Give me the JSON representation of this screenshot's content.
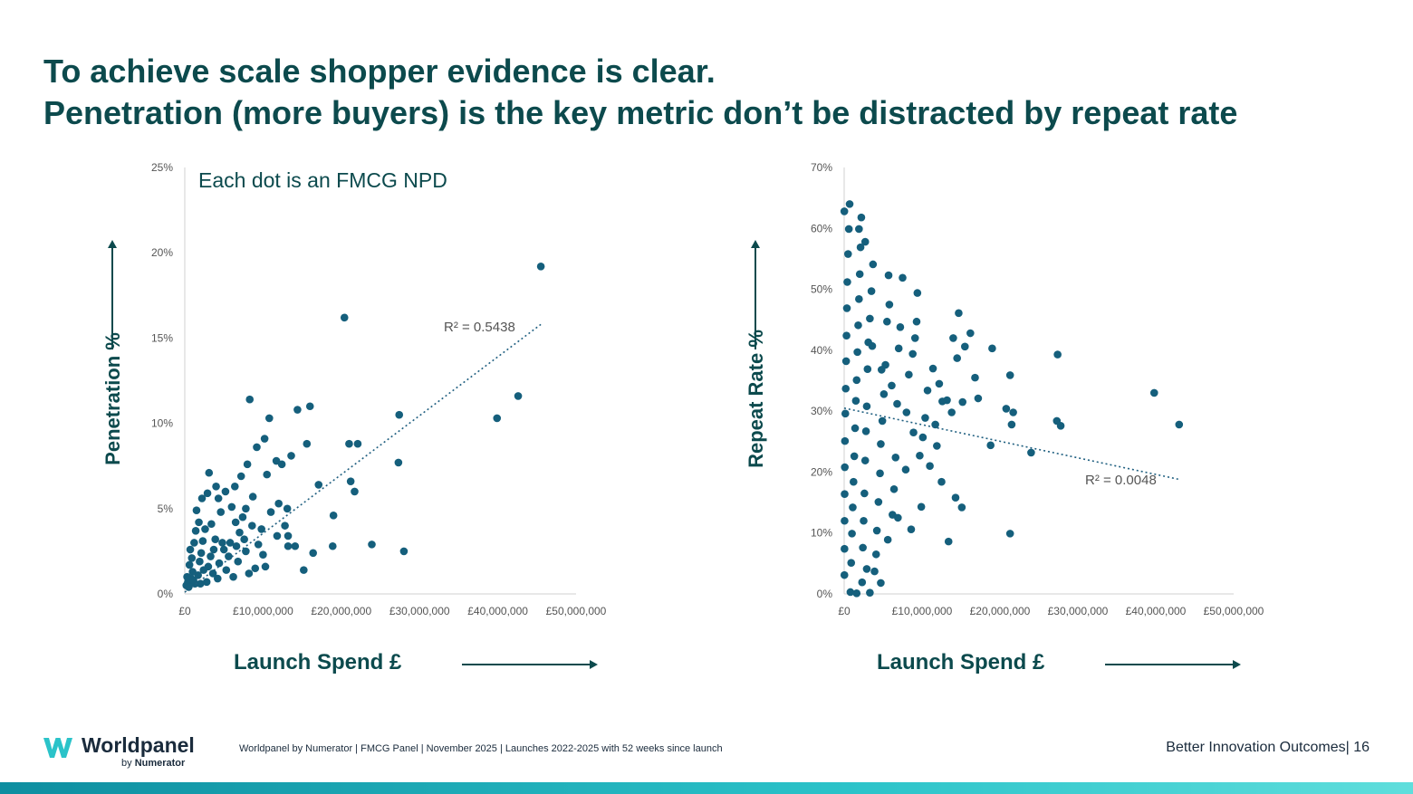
{
  "slide": {
    "title_line1": "To achieve scale shopper evidence is clear.",
    "title_line2": "Penetration (more buyers) is the key metric don’t be distracted by repeat rate",
    "annotation": "Each dot is an FMCG NPD",
    "footer": {
      "brand": "Worldpanel",
      "brand_sub_prefix": "by",
      "brand_sub": "Numerator",
      "source": "Worldpanel by Numerator | FMCG Panel | November 2025 | Launches 2022-2025 with 52 weeks since launch",
      "right": "Better Innovation Outcomes| 16"
    },
    "colors": {
      "title": "#0c4a4d",
      "dots": "#155f7c",
      "accent_bar": "#2bc3c9"
    }
  },
  "chart_data": [
    {
      "type": "scatter",
      "ylabel": "Penetration %",
      "xlabel": "Launch Spend £",
      "x_ticks": [
        "£0",
        "£10,000,000",
        "£20,000,000",
        "£30,000,000",
        "£40,000,000",
        "£50,000,000"
      ],
      "y_ticks": [
        "0%",
        "5%",
        "10%",
        "15%",
        "20%",
        "25%"
      ],
      "xlim": [
        0,
        50000000
      ],
      "ylim": [
        0,
        25
      ],
      "grid": false,
      "trendline": {
        "type": "linear",
        "x": [
          0,
          45500000
        ],
        "y": [
          0.1,
          15.8
        ],
        "r2_text": "R² = 0.5438"
      },
      "points": [
        [
          45500000,
          19.2
        ],
        [
          20400000,
          16.2
        ],
        [
          42600000,
          11.6
        ],
        [
          39900000,
          10.3
        ],
        [
          27400000,
          10.5
        ],
        [
          27300000,
          7.7
        ],
        [
          8300000,
          11.4
        ],
        [
          10800000,
          10.3
        ],
        [
          14400000,
          10.8
        ],
        [
          16000000,
          11.0
        ],
        [
          21000000,
          8.8
        ],
        [
          22100000,
          8.8
        ],
        [
          21200000,
          6.6
        ],
        [
          21700000,
          6.0
        ],
        [
          17100000,
          6.4
        ],
        [
          15600000,
          8.8
        ],
        [
          13600000,
          8.1
        ],
        [
          19000000,
          4.6
        ],
        [
          18900000,
          2.8
        ],
        [
          23900000,
          2.9
        ],
        [
          28000000,
          2.5
        ],
        [
          15200000,
          1.4
        ],
        [
          16400000,
          2.4
        ],
        [
          13200000,
          2.8
        ],
        [
          14100000,
          2.8
        ],
        [
          13200000,
          3.4
        ],
        [
          13100000,
          5.0
        ],
        [
          12800000,
          4.0
        ],
        [
          10200000,
          9.1
        ],
        [
          11700000,
          7.8
        ],
        [
          9200000,
          8.6
        ],
        [
          10500000,
          7.0
        ],
        [
          12400000,
          7.6
        ],
        [
          8000000,
          7.6
        ],
        [
          7200000,
          6.9
        ],
        [
          8700000,
          5.7
        ],
        [
          7800000,
          5.0
        ],
        [
          9800000,
          3.8
        ],
        [
          10000000,
          2.3
        ],
        [
          9000000,
          1.5
        ],
        [
          10300000,
          1.6
        ],
        [
          11800000,
          3.4
        ],
        [
          3100000,
          7.1
        ],
        [
          5200000,
          6.0
        ],
        [
          4300000,
          5.6
        ],
        [
          2200000,
          5.6
        ],
        [
          1500000,
          4.9
        ],
        [
          6500000,
          4.2
        ],
        [
          7000000,
          3.6
        ],
        [
          7800000,
          2.5
        ],
        [
          8200000,
          1.2
        ],
        [
          6200000,
          1.0
        ],
        [
          6800000,
          1.9
        ],
        [
          5600000,
          2.2
        ],
        [
          4800000,
          3.0
        ],
        [
          3700000,
          2.6
        ],
        [
          5300000,
          1.4
        ],
        [
          4200000,
          0.9
        ],
        [
          2600000,
          3.8
        ],
        [
          3000000,
          1.6
        ],
        [
          2100000,
          2.4
        ],
        [
          2800000,
          0.7
        ],
        [
          1200000,
          3.0
        ],
        [
          1700000,
          1.1
        ],
        [
          1900000,
          1.9
        ],
        [
          900000,
          2.1
        ],
        [
          1000000,
          1.3
        ],
        [
          600000,
          1.7
        ],
        [
          800000,
          0.9
        ],
        [
          400000,
          0.7
        ],
        [
          300000,
          1.0
        ],
        [
          200000,
          0.5
        ],
        [
          500000,
          0.4
        ],
        [
          1300000,
          0.6
        ],
        [
          2400000,
          1.4
        ],
        [
          3400000,
          4.1
        ],
        [
          4600000,
          4.8
        ],
        [
          6000000,
          5.1
        ],
        [
          3900000,
          3.2
        ],
        [
          5800000,
          3.0
        ],
        [
          7400000,
          4.5
        ],
        [
          8600000,
          4.0
        ],
        [
          9400000,
          2.9
        ],
        [
          11000000,
          4.8
        ],
        [
          12000000,
          5.3
        ],
        [
          6400000,
          6.3
        ],
        [
          4000000,
          6.3
        ],
        [
          2900000,
          5.9
        ],
        [
          1800000,
          4.2
        ],
        [
          2300000,
          3.1
        ],
        [
          3300000,
          2.2
        ],
        [
          4400000,
          1.8
        ],
        [
          5000000,
          2.6
        ],
        [
          6600000,
          2.8
        ],
        [
          7600000,
          3.2
        ],
        [
          1400000,
          3.7
        ],
        [
          700000,
          2.6
        ],
        [
          1100000,
          0.8
        ],
        [
          2000000,
          0.6
        ],
        [
          3600000,
          1.2
        ]
      ]
    },
    {
      "type": "scatter",
      "ylabel": "Repeat Rate %",
      "xlabel": "Launch Spend £",
      "x_ticks": [
        "£0",
        "£10,000,000",
        "£20,000,000",
        "£30,000,000",
        "£40,000,000",
        "£50,000,000"
      ],
      "y_ticks": [
        "0%",
        "10%",
        "20%",
        "30%",
        "40%",
        "50%",
        "60%",
        "70%"
      ],
      "xlim": [
        0,
        50000000
      ],
      "ylim": [
        0,
        70
      ],
      "grid": false,
      "trendline": {
        "type": "linear",
        "x": [
          0,
          43000000
        ],
        "y": [
          30.5,
          18.8
        ],
        "r2_text": "R² = 0.0048"
      },
      "points": [
        [
          43000000,
          27.8
        ],
        [
          39800000,
          33.0
        ],
        [
          27400000,
          39.3
        ],
        [
          27800000,
          27.6
        ],
        [
          27300000,
          28.4
        ],
        [
          24000000,
          23.2
        ],
        [
          21300000,
          35.9
        ],
        [
          21500000,
          27.8
        ],
        [
          21700000,
          29.8
        ],
        [
          20800000,
          30.4
        ],
        [
          19000000,
          40.3
        ],
        [
          18800000,
          24.4
        ],
        [
          21300000,
          9.9
        ],
        [
          17200000,
          32.1
        ],
        [
          16800000,
          35.5
        ],
        [
          16200000,
          42.8
        ],
        [
          15500000,
          40.6
        ],
        [
          15200000,
          31.5
        ],
        [
          14700000,
          46.1
        ],
        [
          14500000,
          38.7
        ],
        [
          14000000,
          42.0
        ],
        [
          13800000,
          29.8
        ],
        [
          13200000,
          31.8
        ],
        [
          15100000,
          14.2
        ],
        [
          14300000,
          15.8
        ],
        [
          13400000,
          8.6
        ],
        [
          12500000,
          18.4
        ],
        [
          12200000,
          34.5
        ],
        [
          11700000,
          27.8
        ],
        [
          11400000,
          37.0
        ],
        [
          11000000,
          21.0
        ],
        [
          10700000,
          33.4
        ],
        [
          10100000,
          25.7
        ],
        [
          9400000,
          49.4
        ],
        [
          9300000,
          44.7
        ],
        [
          9100000,
          42.0
        ],
        [
          8800000,
          39.4
        ],
        [
          8300000,
          36.0
        ],
        [
          8000000,
          29.8
        ],
        [
          7500000,
          51.9
        ],
        [
          7200000,
          43.8
        ],
        [
          7000000,
          40.3
        ],
        [
          6800000,
          31.2
        ],
        [
          6600000,
          22.4
        ],
        [
          6400000,
          17.2
        ],
        [
          6200000,
          13.0
        ],
        [
          5800000,
          47.5
        ],
        [
          5500000,
          44.7
        ],
        [
          5300000,
          37.6
        ],
        [
          5100000,
          32.8
        ],
        [
          4900000,
          28.4
        ],
        [
          4700000,
          24.6
        ],
        [
          4600000,
          19.8
        ],
        [
          4400000,
          15.1
        ],
        [
          4200000,
          10.4
        ],
        [
          4100000,
          6.5
        ],
        [
          3900000,
          3.7
        ],
        [
          3700000,
          54.1
        ],
        [
          3500000,
          49.7
        ],
        [
          3300000,
          45.2
        ],
        [
          3100000,
          41.3
        ],
        [
          3000000,
          36.9
        ],
        [
          2900000,
          30.8
        ],
        [
          2800000,
          26.7
        ],
        [
          2700000,
          21.9
        ],
        [
          2600000,
          16.5
        ],
        [
          2500000,
          12.0
        ],
        [
          2400000,
          7.6
        ],
        [
          2300000,
          1.9
        ],
        [
          2200000,
          61.8
        ],
        [
          2100000,
          56.9
        ],
        [
          2000000,
          52.5
        ],
        [
          1900000,
          48.4
        ],
        [
          1800000,
          44.1
        ],
        [
          1700000,
          39.7
        ],
        [
          1600000,
          35.1
        ],
        [
          1500000,
          31.7
        ],
        [
          1400000,
          27.2
        ],
        [
          1300000,
          22.6
        ],
        [
          1200000,
          18.4
        ],
        [
          1100000,
          14.2
        ],
        [
          1000000,
          9.9
        ],
        [
          900000,
          5.1
        ],
        [
          800000,
          0.3
        ],
        [
          700000,
          64.0
        ],
        [
          600000,
          59.9
        ],
        [
          500000,
          55.8
        ],
        [
          400000,
          51.2
        ],
        [
          350000,
          46.9
        ],
        [
          300000,
          42.4
        ],
        [
          250000,
          38.2
        ],
        [
          200000,
          33.7
        ],
        [
          150000,
          29.6
        ],
        [
          100000,
          25.1
        ],
        [
          80000,
          20.8
        ],
        [
          60000,
          16.4
        ],
        [
          50000,
          12.0
        ],
        [
          40000,
          7.4
        ],
        [
          30000,
          3.1
        ],
        [
          20000,
          62.8
        ],
        [
          1600000,
          0.1
        ],
        [
          3300000,
          0.2
        ],
        [
          2900000,
          4.1
        ],
        [
          4700000,
          1.8
        ],
        [
          5600000,
          8.9
        ],
        [
          6900000,
          12.5
        ],
        [
          8600000,
          10.6
        ],
        [
          9900000,
          14.3
        ],
        [
          7900000,
          20.4
        ],
        [
          9700000,
          22.7
        ],
        [
          11900000,
          24.3
        ],
        [
          8900000,
          26.5
        ],
        [
          10400000,
          28.9
        ],
        [
          12600000,
          31.6
        ],
        [
          6100000,
          34.2
        ],
        [
          4800000,
          36.8
        ],
        [
          3600000,
          40.7
        ],
        [
          5700000,
          52.3
        ],
        [
          2700000,
          57.8
        ],
        [
          1900000,
          59.9
        ]
      ]
    }
  ]
}
